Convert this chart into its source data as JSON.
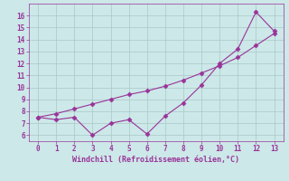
{
  "x": [
    0,
    1,
    2,
    3,
    4,
    5,
    6,
    7,
    8,
    9,
    10,
    11,
    12,
    13
  ],
  "line1_y": [
    7.5,
    7.3,
    7.5,
    6.0,
    7.0,
    7.3,
    6.1,
    7.6,
    8.7,
    10.2,
    12.0,
    13.2,
    16.3,
    14.7
  ],
  "line2_y": [
    7.5,
    7.8,
    8.2,
    8.6,
    9.0,
    9.4,
    9.7,
    10.1,
    10.6,
    11.2,
    11.8,
    12.5,
    13.5,
    14.5
  ],
  "color": "#993399",
  "bg_color": "#cce8e8",
  "grid_color": "#aac8c8",
  "xlabel": "Windchill (Refroidissement éolien,°C)",
  "xlim": [
    -0.5,
    13.5
  ],
  "ylim": [
    5.5,
    17.0
  ],
  "yticks": [
    6,
    7,
    8,
    9,
    10,
    11,
    12,
    13,
    14,
    15,
    16
  ],
  "xticks": [
    0,
    1,
    2,
    3,
    4,
    5,
    6,
    7,
    8,
    9,
    10,
    11,
    12,
    13
  ],
  "linewidth": 0.8,
  "markersize": 2.5,
  "tick_fontsize": 5.5,
  "xlabel_fontsize": 6.0
}
